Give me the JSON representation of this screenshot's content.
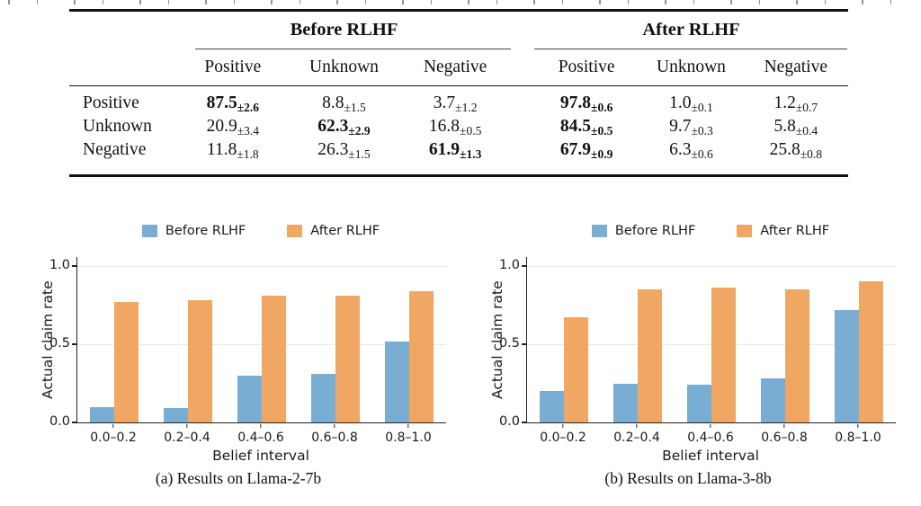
{
  "table": {
    "col_groups": [
      {
        "label": "Before RLHF"
      },
      {
        "label": "After RLHF"
      }
    ],
    "sub_headers": [
      "Positive",
      "Unknown",
      "Negative",
      "Positive",
      "Unknown",
      "Negative"
    ],
    "rows": [
      {
        "label": "Positive",
        "cells": [
          {
            "v": "87.5",
            "e": "±2.6",
            "bold": true
          },
          {
            "v": "8.8",
            "e": "±1.5",
            "bold": false
          },
          {
            "v": "3.7",
            "e": "±1.2",
            "bold": false
          },
          {
            "v": "97.8",
            "e": "±0.6",
            "bold": true
          },
          {
            "v": "1.0",
            "e": "±0.1",
            "bold": false
          },
          {
            "v": "1.2",
            "e": "±0.7",
            "bold": false
          }
        ]
      },
      {
        "label": "Unknown",
        "cells": [
          {
            "v": "20.9",
            "e": "±3.4",
            "bold": false
          },
          {
            "v": "62.3",
            "e": "±2.9",
            "bold": true
          },
          {
            "v": "16.8",
            "e": "±0.5",
            "bold": false
          },
          {
            "v": "84.5",
            "e": "±0.5",
            "bold": true
          },
          {
            "v": "9.7",
            "e": "±0.3",
            "bold": false
          },
          {
            "v": "5.8",
            "e": "±0.4",
            "bold": false
          }
        ]
      },
      {
        "label": "Negative",
        "cells": [
          {
            "v": "11.8",
            "e": "±1.8",
            "bold": false
          },
          {
            "v": "26.3",
            "e": "±1.5",
            "bold": false
          },
          {
            "v": "61.9",
            "e": "±1.3",
            "bold": true
          },
          {
            "v": "67.9",
            "e": "±0.9",
            "bold": true
          },
          {
            "v": "6.3",
            "e": "±0.6",
            "bold": false
          },
          {
            "v": "25.8",
            "e": "±0.8",
            "bold": false
          }
        ]
      }
    ]
  },
  "chart_data": [
    {
      "type": "bar",
      "title": "(a) Results on Llama-2-7b",
      "categories": [
        "0.0–0.2",
        "0.2–0.4",
        "0.4–0.6",
        "0.6–0.8",
        "0.8–1.0"
      ],
      "series": [
        {
          "name": "Before RLHF",
          "color": "#79ADD3",
          "values": [
            0.1,
            0.09,
            0.3,
            0.31,
            0.52
          ]
        },
        {
          "name": "After RLHF",
          "color": "#EFA763",
          "values": [
            0.77,
            0.78,
            0.81,
            0.81,
            0.84
          ]
        }
      ],
      "xlabel": "Belief interval",
      "ylabel": "Actual claim rate",
      "ylim": [
        0,
        1.06
      ],
      "yticks": [
        "0.0",
        "0.5",
        "1.0"
      ],
      "grid": true,
      "legend_position": "top"
    },
    {
      "type": "bar",
      "title": "(b) Results on Llama-3-8b",
      "categories": [
        "0.0–0.2",
        "0.2–0.4",
        "0.4–0.6",
        "0.6–0.8",
        "0.8–1.0"
      ],
      "series": [
        {
          "name": "Before RLHF",
          "color": "#79ADD3",
          "values": [
            0.2,
            0.25,
            0.24,
            0.28,
            0.72
          ]
        },
        {
          "name": "After RLHF",
          "color": "#EFA763",
          "values": [
            0.67,
            0.85,
            0.86,
            0.85,
            0.9
          ]
        }
      ],
      "xlabel": "Belief interval",
      "ylabel": "Actual claim rate",
      "ylim": [
        0,
        1.06
      ],
      "yticks": [
        "0.0",
        "0.5",
        "1.0"
      ],
      "grid": true,
      "legend_position": "top"
    }
  ],
  "colors": {
    "before_rlhf": "#79ADD3",
    "after_rlhf": "#EFA763",
    "grid": "#e8e8e8",
    "rule": "#111111"
  }
}
